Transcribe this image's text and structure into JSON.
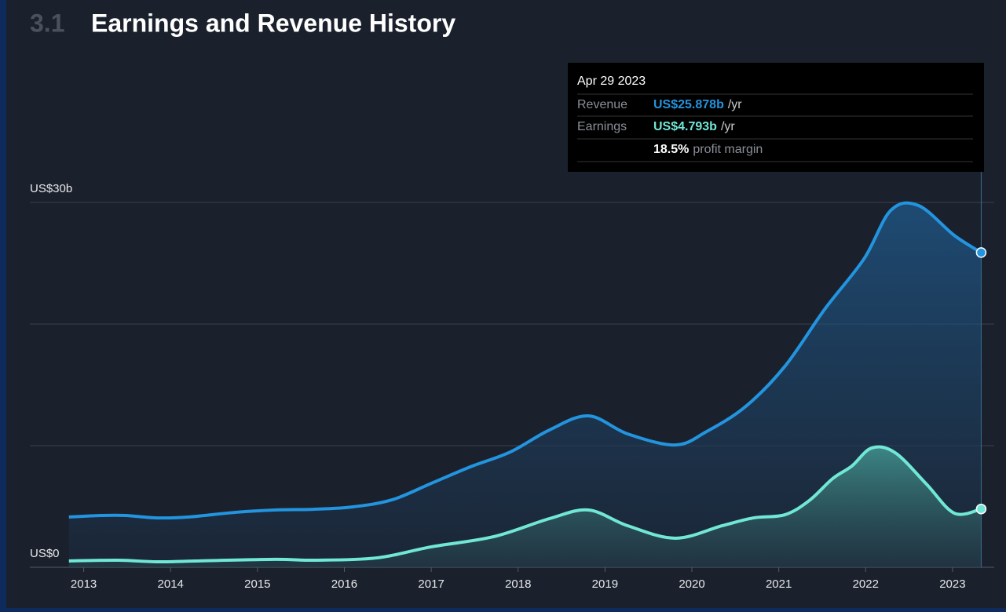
{
  "section_number": "3.1",
  "chart_data": {
    "type": "area",
    "title": "Earnings and Revenue History",
    "xlim": [
      2012.38,
      2023.48
    ],
    "xticks": [
      2013,
      2014,
      2015,
      2016,
      2017,
      2018,
      2019,
      2020,
      2021,
      2022,
      2023
    ],
    "ylim": [
      0,
      30
    ],
    "yticks": [
      {
        "value": 0,
        "label": "US$0"
      },
      {
        "value": 10,
        "label": null
      },
      {
        "value": 20,
        "label": null
      },
      {
        "value": 30,
        "label": "US$30b"
      }
    ],
    "grid": true,
    "series": [
      {
        "name": "Revenue",
        "color": "#2394df",
        "x": [
          2012.83,
          2013.21,
          2013.48,
          2013.84,
          2014.2,
          2014.75,
          2015.2,
          2015.65,
          2016.1,
          2016.55,
          2017.0,
          2017.45,
          2017.91,
          2018.36,
          2018.81,
          2019.26,
          2019.81,
          2020.17,
          2020.62,
          2021.07,
          2021.53,
          2021.98,
          2022.29,
          2022.61,
          2023.02,
          2023.33
        ],
        "values": [
          4.13,
          4.26,
          4.26,
          4.06,
          4.13,
          4.52,
          4.71,
          4.77,
          4.97,
          5.55,
          6.9,
          8.26,
          9.48,
          11.29,
          12.45,
          10.97,
          10.06,
          11.16,
          13.23,
          16.52,
          21.23,
          25.35,
          29.35,
          29.74,
          27.29,
          25.878
        ]
      },
      {
        "name": "Earnings",
        "color": "#71e7d6",
        "x": [
          2012.83,
          2013.39,
          2013.84,
          2014.29,
          2015.2,
          2015.65,
          2016.37,
          2017.0,
          2017.72,
          2018.36,
          2018.81,
          2019.26,
          2019.81,
          2020.35,
          2020.71,
          2021.07,
          2021.35,
          2021.62,
          2021.84,
          2022.07,
          2022.34,
          2022.7,
          2023.02,
          2023.33
        ],
        "values": [
          0.52,
          0.58,
          0.45,
          0.52,
          0.65,
          0.58,
          0.77,
          1.68,
          2.52,
          4.0,
          4.71,
          3.42,
          2.39,
          3.42,
          4.06,
          4.32,
          5.48,
          7.29,
          8.32,
          9.81,
          9.42,
          6.84,
          4.45,
          4.793
        ]
      }
    ],
    "tooltip": {
      "date": "Apr 29 2023",
      "rows": [
        {
          "label": "Revenue",
          "value": "US$25.878b",
          "unit": "/yr"
        },
        {
          "label": "Earnings",
          "value": "US$4.793b",
          "unit": "/yr"
        }
      ],
      "margin_value": "18.5%",
      "margin_label": "profit margin"
    }
  }
}
